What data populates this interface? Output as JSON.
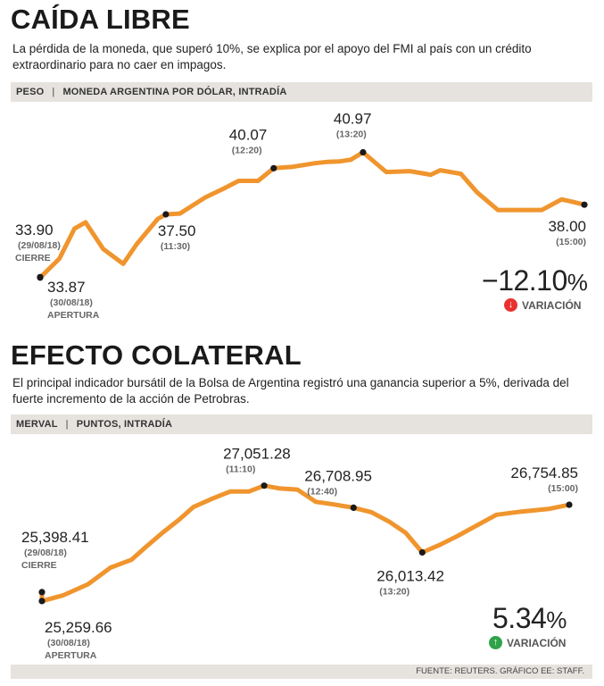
{
  "section1": {
    "title": "CAÍDA LIBRE",
    "description": "La pérdida de la moneda, que superó 10%, se explica por el apoyo del FMI al país con un crédito extraordinario para no caer en impagos.",
    "bar_label": "PESO",
    "bar_sublabel": "MONEDA ARGENTINA POR DÓLAR, INTRADÍA",
    "variation_value": "−12.10",
    "variation_pct": "%",
    "variation_label": "VARIACIÓN",
    "variation_color": "#e8322f",
    "variation_arrow": "↓"
  },
  "section2": {
    "title": "EFECTO COLATERAL",
    "description": "El principal indicador bursátil de la Bolsa de Argentina registró una ganancia superior a 5%, derivada del fuerte incremento de la acción de Petrobras.",
    "bar_label": "MERVAL",
    "bar_sublabel": "PUNTOS, INTRADÍA",
    "variation_value": "5.34",
    "variation_pct": "%",
    "variation_label": "VARIACIÓN",
    "variation_color": "#2fa24a",
    "variation_arrow": "↑"
  },
  "source": "FUENTE: REUTERS. GRÁFICO EE: STAFF.",
  "line_color": "#f0952e",
  "chart_data": [
    {
      "type": "line",
      "title": "PESO",
      "ylabel": "MONEDA ARGENTINA POR DÓLAR, INTRADÍA",
      "ylim": [
        33.0,
        41.5
      ],
      "x": [
        0,
        0.0,
        2.07,
        3.7,
        4.89,
        6.78,
        8.94,
        10.37,
        12.66,
        13.53,
        15.03,
        17.72,
        19.78,
        21.36,
        23.44,
        25.13,
        27.2,
        29.6,
        30.83,
        32.15,
        33.44,
        34.74,
        37.25,
        39.77,
        42.03,
        43.06,
        45.27,
        47.01,
        49.26,
        51.05,
        52.41,
        53.99,
        56.11,
        57.4,
        58.56
      ],
      "values": [
        33.9,
        33.87,
        34.95,
        36.65,
        37.0,
        35.5,
        34.65,
        35.75,
        37.2,
        37.45,
        37.5,
        38.4,
        38.92,
        39.35,
        39.35,
        40.07,
        40.15,
        40.35,
        40.42,
        40.45,
        40.55,
        40.97,
        39.85,
        39.9,
        39.7,
        39.95,
        39.75,
        38.7,
        37.7,
        37.7,
        37.7,
        37.7,
        38.3,
        38.15,
        38.0
      ],
      "labels": [
        {
          "value": "33.90",
          "note": "(29/08/18)",
          "note2": "CIERRE"
        },
        {
          "value": "33.87",
          "note": "(30/08/18)",
          "note2": "APERTURA"
        },
        {
          "value": "37.50",
          "note": "(11:30)",
          "note2": ""
        },
        {
          "value": "40.07",
          "note": "(12:20)",
          "note2": ""
        },
        {
          "value": "40.97",
          "note": "(13:20)",
          "note2": ""
        },
        {
          "value": "38.00",
          "note": "(15:00)",
          "note2": ""
        }
      ],
      "variation": -12.1
    },
    {
      "type": "line",
      "title": "MERVAL",
      "ylabel": "PUNTOS, INTRADÍA",
      "ylim": [
        25050,
        27200
      ],
      "x": [
        0,
        0.0,
        2.12,
        4.56,
        6.8,
        8.86,
        10.3,
        11.94,
        13.56,
        15.0,
        16.88,
        18.64,
        20.47,
        22.0,
        23.46,
        25.29,
        27.12,
        28.89,
        30.85,
        32.62,
        34.4,
        36.0,
        37.65,
        39.37,
        41.16,
        42.9,
        44.99,
        47.48,
        50.16,
        52.2
      ],
      "values": [
        25398.41,
        25259.66,
        25350,
        25520,
        25780,
        25900,
        26100,
        26320,
        26520,
        26720,
        26850,
        26960,
        26960,
        27051.28,
        27010,
        26990,
        26800,
        26760,
        26708.95,
        26640,
        26490,
        26320,
        26013.42,
        26130,
        26270,
        26420,
        26600,
        26650,
        26690,
        26754.85
      ],
      "labels": [
        {
          "value": "25,398.41",
          "note": "(29/08/18)",
          "note2": "CIERRE"
        },
        {
          "value": "25,259.66",
          "note": "(30/08/18)",
          "note2": "APERTURA"
        },
        {
          "value": "27,051.28",
          "note": "(11:10)",
          "note2": ""
        },
        {
          "value": "26,708.95",
          "note": "(12:40)",
          "note2": ""
        },
        {
          "value": "26,013.42",
          "note": "(13:20)",
          "note2": ""
        },
        {
          "value": "26,754.85",
          "note": "(15:00)",
          "note2": ""
        }
      ],
      "variation": 5.34
    }
  ]
}
